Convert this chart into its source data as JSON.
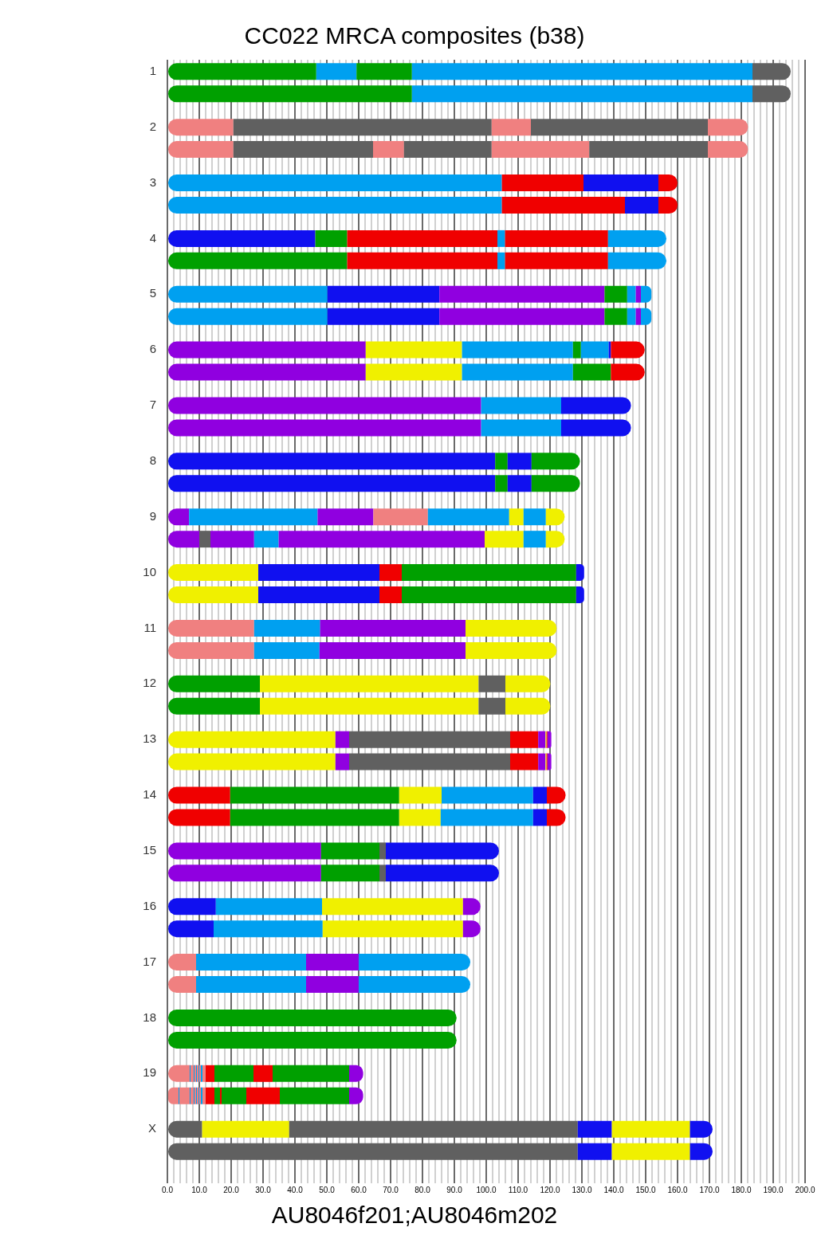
{
  "chart_data": {
    "type": "bar",
    "orientation": "horizontal",
    "stacked": true,
    "title": "CC022 MRCA composites (b38)",
    "xlabel": "AU8046f201;AU8046m202",
    "categories": [
      "1",
      null,
      "2",
      null,
      "3",
      null,
      "4",
      null,
      "5",
      null,
      "6",
      null,
      "7",
      null,
      "8",
      null,
      "9",
      null,
      "10",
      null,
      "11",
      null,
      "12",
      null,
      "13",
      null,
      "14",
      null,
      "15",
      null,
      "16",
      null,
      "17",
      null,
      "18",
      null,
      "19",
      null,
      "X",
      null
    ],
    "xlim": [
      0,
      200
    ],
    "xticks": [
      {
        "value": 0,
        "label": "0.0"
      },
      {
        "value": 2,
        "label": null
      },
      {
        "value": 4,
        "label": null
      },
      {
        "value": 6,
        "label": null
      },
      {
        "value": 8,
        "label": null
      },
      {
        "value": 10,
        "label": "10.0"
      },
      {
        "value": 12,
        "label": null
      },
      {
        "value": 14,
        "label": null
      },
      {
        "value": 16,
        "label": null
      },
      {
        "value": 18,
        "label": null
      },
      {
        "value": 20,
        "label": "20.0"
      },
      {
        "value": 22,
        "label": null
      },
      {
        "value": 24,
        "label": null
      },
      {
        "value": 26,
        "label": null
      },
      {
        "value": 28,
        "label": null
      },
      {
        "value": 30,
        "label": "30.0"
      },
      {
        "value": 32,
        "label": null
      },
      {
        "value": 34,
        "label": null
      },
      {
        "value": 36,
        "label": null
      },
      {
        "value": 38,
        "label": null
      },
      {
        "value": 40,
        "label": "40.0"
      },
      {
        "value": 42,
        "label": null
      },
      {
        "value": 44,
        "label": null
      },
      {
        "value": 46,
        "label": null
      },
      {
        "value": 48,
        "label": null
      },
      {
        "value": 50,
        "label": "50.0"
      },
      {
        "value": 52,
        "label": null
      },
      {
        "value": 54,
        "label": null
      },
      {
        "value": 56,
        "label": null
      },
      {
        "value": 58,
        "label": null
      },
      {
        "value": 60,
        "label": "60.0"
      },
      {
        "value": 62,
        "label": null
      },
      {
        "value": 64,
        "label": null
      },
      {
        "value": 66,
        "label": null
      },
      {
        "value": 68,
        "label": null
      },
      {
        "value": 70,
        "label": "70.0"
      },
      {
        "value": 72,
        "label": null
      },
      {
        "value": 74,
        "label": null
      },
      {
        "value": 76,
        "label": null
      },
      {
        "value": 78,
        "label": null
      },
      {
        "value": 80,
        "label": "80.0"
      },
      {
        "value": 82,
        "label": null
      },
      {
        "value": 84,
        "label": null
      },
      {
        "value": 86,
        "label": null
      },
      {
        "value": 88,
        "label": null
      },
      {
        "value": 90,
        "label": "90.0"
      },
      {
        "value": 92,
        "label": null
      },
      {
        "value": 94,
        "label": null
      },
      {
        "value": 96,
        "label": null
      },
      {
        "value": 98,
        "label": null
      },
      {
        "value": 100,
        "label": "100.0"
      },
      {
        "value": 102,
        "label": null
      },
      {
        "value": 104,
        "label": null
      },
      {
        "value": 106,
        "label": null
      },
      {
        "value": 108,
        "label": null
      },
      {
        "value": 110,
        "label": "110.0"
      },
      {
        "value": 112,
        "label": null
      },
      {
        "value": 114,
        "label": null
      },
      {
        "value": 116,
        "label": null
      },
      {
        "value": 118,
        "label": null
      },
      {
        "value": 120,
        "label": "120.0"
      },
      {
        "value": 122,
        "label": null
      },
      {
        "value": 124,
        "label": null
      },
      {
        "value": 126,
        "label": null
      },
      {
        "value": 128,
        "label": null
      },
      {
        "value": 130,
        "label": "130.0"
      },
      {
        "value": 132,
        "label": null
      },
      {
        "value": 134,
        "label": null
      },
      {
        "value": 136,
        "label": null
      },
      {
        "value": 138,
        "label": null
      },
      {
        "value": 140,
        "label": "140.0"
      },
      {
        "value": 142,
        "label": null
      },
      {
        "value": 144,
        "label": null
      },
      {
        "value": 146,
        "label": null
      },
      {
        "value": 148,
        "label": null
      },
      {
        "value": 150,
        "label": "150.0"
      },
      {
        "value": 152,
        "label": null
      },
      {
        "value": 154,
        "label": null
      },
      {
        "value": 156,
        "label": null
      },
      {
        "value": 158,
        "label": null
      },
      {
        "value": 160,
        "label": "160.0"
      },
      {
        "value": 162,
        "label": null
      },
      {
        "value": 164,
        "label": null
      },
      {
        "value": 166,
        "label": null
      },
      {
        "value": 168,
        "label": null
      },
      {
        "value": 170,
        "label": "170.0"
      },
      {
        "value": 172,
        "label": null
      },
      {
        "value": 174,
        "label": null
      },
      {
        "value": 176,
        "label": null
      },
      {
        "value": 178,
        "label": null
      },
      {
        "value": 180,
        "label": "180.0"
      },
      {
        "value": 182,
        "label": null
      },
      {
        "value": 184,
        "label": null
      },
      {
        "value": 186,
        "label": null
      },
      {
        "value": 188,
        "label": null
      },
      {
        "value": 190,
        "label": "190.0"
      },
      {
        "value": 192,
        "label": null
      },
      {
        "value": 194,
        "label": null
      },
      {
        "value": 196,
        "label": null
      },
      {
        "value": 198,
        "label": null
      },
      {
        "value": 200,
        "label": "200.0"
      }
    ],
    "grid": "x",
    "series": [
      {
        "values": [
          46.7,
          76.7,
          20.7,
          20.7,
          104.9,
          104.9,
          46.4,
          56.4,
          50.2,
          50.2,
          62.2,
          62.2,
          98.4,
          98.4,
          102.8,
          102.8,
          6.8,
          10.0,
          28.5,
          28.5,
          27.2,
          27.2,
          29.0,
          29.0,
          52.7,
          52.7,
          19.7,
          19.7,
          48.2,
          48.2,
          15.2,
          14.5,
          9.0,
          9.0,
          90.7,
          90.7,
          7.0,
          3.5,
          10.9,
          128.7
        ],
        "colors": [
          "#00a000",
          "#00a000",
          "#f08080",
          "#f08080",
          "#00a0f0",
          "#00a0f0",
          "#1010f0",
          "#00a000",
          "#00a0f0",
          "#00a0f0",
          "#9000e0",
          "#9000e0",
          "#9000e0",
          "#9000e0",
          "#1010f0",
          "#1010f0",
          "#9000e0",
          "#9000e0",
          "#f0f000",
          "#f0f000",
          "#f08080",
          "#f08080",
          "#00a000",
          "#00a000",
          "#f0f000",
          "#f0f000",
          "#f00000",
          "#f00000",
          "#9000e0",
          "#9000e0",
          "#1010f0",
          "#1010f0",
          "#f08080",
          "#f08080",
          "#00a000",
          "#00a000",
          "#f08080",
          "#f08080",
          "#606060",
          "#606060"
        ]
      },
      {
        "values": [
          12.6,
          106.8,
          81.0,
          43.8,
          25.6,
          38.6,
          10.0,
          47.1,
          35.1,
          35.1,
          30.2,
          30.2,
          25.1,
          25.1,
          3.9,
          3.9,
          40.3,
          3.5,
          38.0,
          38.0,
          20.7,
          20.5,
          68.6,
          68.6,
          4.3,
          4.3,
          53.0,
          53.0,
          18.3,
          18.3,
          33.3,
          34.2,
          34.5,
          34.5,
          null,
          null,
          0.25,
          0.25,
          27.3,
          10.7
        ],
        "colors": [
          "#00a0f0",
          "#00a0f0",
          "#606060",
          "#606060",
          "#f00000",
          "#f00000",
          "#00a000",
          "#f00000",
          "#1010f0",
          "#1010f0",
          "#f0f000",
          "#f0f000",
          "#00a0f0",
          "#00a0f0",
          "#00a000",
          "#00a000",
          "#00a0f0",
          "#606060",
          "#1010f0",
          "#1010f0",
          "#00a0f0",
          "#00a0f0",
          "#f0f000",
          "#f0f000",
          "#9000e0",
          "#9000e0",
          "#00a000",
          "#00a000",
          "#00a000",
          "#00a000",
          "#00a0f0",
          "#00a0f0",
          "#00a0f0",
          "#00a0f0",
          null,
          null,
          "#00a0f0",
          "#00a0f0",
          "#f0f000",
          "#1010f0"
        ]
      },
      {
        "values": [
          17.4,
          12.0,
          12.3,
          9.7,
          23.5,
          10.5,
          47.1,
          2.4,
          51.8,
          51.8,
          34.8,
          34.8,
          21.9,
          21.9,
          7.5,
          7.5,
          17.5,
          13.7,
          7.0,
          7.0,
          45.6,
          45.8,
          8.4,
          8.4,
          50.5,
          50.5,
          13.3,
          13.0,
          2.0,
          2.0,
          44.2,
          44.0,
          16.5,
          16.5,
          null,
          null,
          1.0,
          3.25,
          90.5,
          24.5
        ],
        "colors": [
          "#00a000",
          "#606060",
          "#f08080",
          "#f08080",
          "#1010f0",
          "#1010f0",
          "#f00000",
          "#00a0f0",
          "#9000e0",
          "#9000e0",
          "#00a0f0",
          "#00a0f0",
          "#1010f0",
          "#1010f0",
          "#1010f0",
          "#1010f0",
          "#9000e0",
          "#9000e0",
          "#f00000",
          "#f00000",
          "#9000e0",
          "#9000e0",
          "#606060",
          "#606060",
          "#606060",
          "#606060",
          "#f0f000",
          "#f0f000",
          "#606060",
          "#606060",
          "#f0f000",
          "#f0f000",
          "#9000e0",
          "#9000e0",
          null,
          null,
          "#f08080",
          "#f08080",
          "#606060",
          "#f0f000"
        ]
      },
      {
        "values": [
          106.8,
          null,
          55.5,
          27.5,
          6.0,
          6.0,
          2.4,
          32.3,
          7.1,
          7.1,
          2.5,
          11.9,
          null,
          null,
          15.2,
          15.2,
          17.1,
          7.7,
          54.7,
          54.7,
          28.6,
          28.6,
          14.1,
          14.1,
          8.8,
          8.8,
          28.7,
          29.0,
          35.5,
          35.5,
          5.5,
          5.5,
          35.0,
          35.0,
          null,
          null,
          0.25,
          0.25,
          10.7,
          7.1
        ],
        "colors": [
          "#00a0f0",
          null,
          "#606060",
          "#606060",
          "#f00000",
          "#f00000",
          "#00a0f0",
          "#f00000",
          "#00a000",
          "#00a000",
          "#00a000",
          "#00a000",
          null,
          null,
          "#00a000",
          "#00a000",
          "#f08080",
          "#00a0f0",
          "#00a000",
          "#00a000",
          "#f0f000",
          "#f0f000",
          "#f0f000",
          "#f0f000",
          "#f00000",
          "#f00000",
          "#00a0f0",
          "#00a0f0",
          "#1010f0",
          "#1010f0",
          "#9000e0",
          "#9000e0",
          "#00a0f0",
          "#00a0f0",
          null,
          null,
          "#00a0f0",
          "#00a0f0",
          "#1010f0",
          "#1010f0"
        ]
      },
      {
        "values": [
          12.0,
          null,
          12.6,
          30.6,
          null,
          null,
          32.3,
          18.3,
          2.7,
          2.7,
          8.7,
          10.6,
          null,
          null,
          null,
          null,
          25.5,
          64.6,
          2.5,
          2.5,
          null,
          null,
          null,
          null,
          2.3,
          2.3,
          4.3,
          4.3,
          null,
          null,
          null,
          null,
          null,
          null,
          null,
          null,
          0.5,
          1.0,
          24.5,
          null
        ],
        "colors": [
          "#606060",
          null,
          "#f08080",
          "#f08080",
          null,
          null,
          "#f00000",
          "#00a0f0",
          "#00a0f0",
          "#00a0f0",
          "#00a0f0",
          "#f00000",
          null,
          null,
          null,
          null,
          "#00a0f0",
          "#9000e0",
          "#1010f0",
          "#1010f0",
          null,
          null,
          null,
          null,
          "#9000e0",
          "#9000e0",
          "#1010f0",
          "#1010f0",
          null,
          null,
          null,
          null,
          null,
          null,
          null,
          null,
          "#f08080",
          "#f08080",
          "#f0f000",
          null
        ]
      },
      {
        "values": [
          null,
          null,
          null,
          37.2,
          null,
          null,
          18.3,
          null,
          1.6,
          1.6,
          0.7,
          null,
          null,
          null,
          null,
          null,
          4.5,
          12.2,
          null,
          null,
          null,
          null,
          null,
          null,
          0.3,
          0.3,
          5.9,
          5.9,
          null,
          null,
          null,
          null,
          null,
          null,
          null,
          null,
          0.25,
          0.25,
          7.1,
          null
        ],
        "colors": [
          null,
          null,
          null,
          "#606060",
          null,
          null,
          "#00a0f0",
          null,
          "#9000e0",
          "#9000e0",
          "#1010f0",
          null,
          null,
          null,
          null,
          null,
          "#f0f000",
          "#f0f000",
          null,
          null,
          null,
          null,
          null,
          null,
          "#f0f000",
          "#f0f000",
          "#f00000",
          "#f00000",
          null,
          null,
          null,
          null,
          null,
          null,
          null,
          null,
          "#00a0f0",
          "#00a0f0",
          "#1010f0",
          null
        ]
      },
      {
        "values": [
          null,
          null,
          null,
          12.6,
          null,
          null,
          null,
          null,
          3.3,
          3.3,
          10.6,
          null,
          null,
          null,
          null,
          null,
          7.0,
          7.0,
          null,
          null,
          null,
          null,
          null,
          null,
          0.3,
          0.3,
          null,
          null,
          null,
          null,
          null,
          null,
          null,
          null,
          null,
          null,
          0.5,
          0.5,
          null,
          null
        ],
        "colors": [
          null,
          null,
          null,
          "#f08080",
          null,
          null,
          null,
          null,
          "#00a0f0",
          "#00a0f0",
          "#f00000",
          null,
          null,
          null,
          null,
          null,
          "#00a0f0",
          "#00a0f0",
          null,
          null,
          null,
          null,
          null,
          null,
          "#f00000",
          "#f00000",
          null,
          null,
          null,
          null,
          null,
          null,
          null,
          null,
          null,
          null,
          "#f08080",
          "#f08080",
          null,
          null
        ]
      },
      {
        "values": [
          null,
          null,
          null,
          null,
          null,
          null,
          null,
          null,
          null,
          null,
          null,
          null,
          null,
          null,
          null,
          null,
          5.9,
          5.9,
          null,
          null,
          null,
          null,
          null,
          null,
          1.2,
          1.2,
          null,
          null,
          null,
          null,
          null,
          null,
          null,
          null,
          null,
          null,
          0.25,
          0.25,
          null,
          null
        ],
        "colors": [
          null,
          null,
          null,
          null,
          null,
          null,
          null,
          null,
          null,
          null,
          null,
          null,
          null,
          null,
          null,
          null,
          "#f0f000",
          "#f0f000",
          null,
          null,
          null,
          null,
          null,
          null,
          "#9000e0",
          "#9000e0",
          null,
          null,
          null,
          null,
          null,
          null,
          null,
          null,
          null,
          null,
          "#00a0f0",
          "#00a0f0",
          null,
          null
        ]
      },
      {
        "values": [
          null,
          null,
          null,
          null,
          null,
          null,
          null,
          null,
          null,
          null,
          null,
          null,
          null,
          null,
          null,
          null,
          null,
          null,
          null,
          null,
          null,
          null,
          null,
          null,
          null,
          null,
          null,
          null,
          null,
          null,
          null,
          null,
          null,
          null,
          null,
          null,
          0.5,
          0.5,
          null,
          null
        ],
        "colors": [
          null,
          null,
          null,
          null,
          null,
          null,
          null,
          null,
          null,
          null,
          null,
          null,
          null,
          null,
          null,
          null,
          null,
          null,
          null,
          null,
          null,
          null,
          null,
          null,
          null,
          null,
          null,
          null,
          null,
          null,
          null,
          null,
          null,
          null,
          null,
          null,
          "#f08080",
          "#f08080",
          null,
          null
        ]
      },
      {
        "values": [
          null,
          null,
          null,
          null,
          null,
          null,
          null,
          null,
          null,
          null,
          null,
          null,
          null,
          null,
          null,
          null,
          null,
          null,
          null,
          null,
          null,
          null,
          null,
          null,
          null,
          null,
          null,
          null,
          null,
          null,
          null,
          null,
          null,
          null,
          null,
          null,
          0.5,
          0.25,
          null,
          null
        ],
        "colors": [
          null,
          null,
          null,
          null,
          null,
          null,
          null,
          null,
          null,
          null,
          null,
          null,
          null,
          null,
          null,
          null,
          null,
          null,
          null,
          null,
          null,
          null,
          null,
          null,
          null,
          null,
          null,
          null,
          null,
          null,
          null,
          null,
          null,
          null,
          null,
          null,
          "#00a0f0",
          "#00a0f0",
          null,
          null
        ]
      },
      {
        "values": [
          null,
          null,
          null,
          null,
          null,
          null,
          null,
          null,
          null,
          null,
          null,
          null,
          null,
          null,
          null,
          null,
          null,
          null,
          null,
          null,
          null,
          null,
          null,
          null,
          null,
          null,
          null,
          null,
          null,
          null,
          null,
          null,
          null,
          null,
          null,
          null,
          1.0,
          0.5,
          null,
          null
        ],
        "colors": [
          null,
          null,
          null,
          null,
          null,
          null,
          null,
          null,
          null,
          null,
          null,
          null,
          null,
          null,
          null,
          null,
          null,
          null,
          null,
          null,
          null,
          null,
          null,
          null,
          null,
          null,
          null,
          null,
          null,
          null,
          null,
          null,
          null,
          null,
          null,
          null,
          "#f08080",
          "#f08080",
          null,
          null
        ]
      },
      {
        "values": [
          null,
          null,
          null,
          null,
          null,
          null,
          null,
          null,
          null,
          null,
          null,
          null,
          null,
          null,
          null,
          null,
          null,
          null,
          null,
          null,
          null,
          null,
          null,
          null,
          null,
          null,
          null,
          null,
          null,
          null,
          null,
          null,
          null,
          null,
          null,
          null,
          2.75,
          0.5,
          null,
          null
        ],
        "colors": [
          null,
          null,
          null,
          null,
          null,
          null,
          null,
          null,
          null,
          null,
          null,
          null,
          null,
          null,
          null,
          null,
          null,
          null,
          null,
          null,
          null,
          null,
          null,
          null,
          null,
          null,
          null,
          null,
          null,
          null,
          null,
          null,
          null,
          null,
          null,
          null,
          "#f00000",
          "#00a0f0",
          null,
          null
        ]
      },
      {
        "values": [
          null,
          null,
          null,
          null,
          null,
          null,
          null,
          null,
          null,
          null,
          null,
          null,
          null,
          null,
          null,
          null,
          null,
          null,
          null,
          null,
          null,
          null,
          null,
          null,
          null,
          null,
          null,
          null,
          null,
          null,
          null,
          null,
          null,
          null,
          null,
          null,
          12.25,
          1.0,
          null,
          null
        ],
        "colors": [
          null,
          null,
          null,
          null,
          null,
          null,
          null,
          null,
          null,
          null,
          null,
          null,
          null,
          null,
          null,
          null,
          null,
          null,
          null,
          null,
          null,
          null,
          null,
          null,
          null,
          null,
          null,
          null,
          null,
          null,
          null,
          null,
          null,
          null,
          null,
          null,
          "#00a000",
          "#f08080",
          null,
          null
        ]
      },
      {
        "values": [
          null,
          null,
          null,
          null,
          null,
          null,
          null,
          null,
          null,
          null,
          null,
          null,
          null,
          null,
          null,
          null,
          null,
          null,
          null,
          null,
          null,
          null,
          null,
          null,
          null,
          null,
          null,
          null,
          null,
          null,
          null,
          null,
          null,
          null,
          null,
          null,
          6.0,
          2.75,
          null,
          null
        ],
        "colors": [
          null,
          null,
          null,
          null,
          null,
          null,
          null,
          null,
          null,
          null,
          null,
          null,
          null,
          null,
          null,
          null,
          null,
          null,
          null,
          null,
          null,
          null,
          null,
          null,
          null,
          null,
          null,
          null,
          null,
          null,
          null,
          null,
          null,
          null,
          null,
          null,
          "#f00000",
          "#f00000",
          null,
          null
        ]
      },
      {
        "values": [
          null,
          null,
          null,
          null,
          null,
          null,
          null,
          null,
          null,
          null,
          null,
          null,
          null,
          null,
          null,
          null,
          null,
          null,
          null,
          null,
          null,
          null,
          null,
          null,
          null,
          null,
          null,
          null,
          null,
          null,
          null,
          null,
          null,
          null,
          null,
          null,
          24.0,
          1.75,
          null,
          null
        ],
        "colors": [
          null,
          null,
          null,
          null,
          null,
          null,
          null,
          null,
          null,
          null,
          null,
          null,
          null,
          null,
          null,
          null,
          null,
          null,
          null,
          null,
          null,
          null,
          null,
          null,
          null,
          null,
          null,
          null,
          null,
          null,
          null,
          null,
          null,
          null,
          null,
          null,
          "#00a000",
          "#00a000",
          null,
          null
        ]
      },
      {
        "values": [
          null,
          null,
          null,
          null,
          null,
          null,
          null,
          null,
          null,
          null,
          null,
          null,
          null,
          null,
          null,
          null,
          null,
          null,
          null,
          null,
          null,
          null,
          null,
          null,
          null,
          null,
          null,
          null,
          null,
          null,
          null,
          null,
          null,
          null,
          null,
          null,
          4.4,
          0.5,
          null,
          null
        ],
        "colors": [
          null,
          null,
          null,
          null,
          null,
          null,
          null,
          null,
          null,
          null,
          null,
          null,
          null,
          null,
          null,
          null,
          null,
          null,
          null,
          null,
          null,
          null,
          null,
          null,
          null,
          null,
          null,
          null,
          null,
          null,
          null,
          null,
          null,
          null,
          null,
          null,
          "#9000e0",
          "#f00000",
          null,
          null
        ]
      },
      {
        "values": [
          null,
          null,
          null,
          null,
          null,
          null,
          null,
          null,
          null,
          null,
          null,
          null,
          null,
          null,
          null,
          null,
          null,
          null,
          null,
          null,
          null,
          null,
          null,
          null,
          null,
          null,
          null,
          null,
          null,
          null,
          null,
          null,
          null,
          null,
          null,
          null,
          null,
          7.75,
          null,
          null
        ],
        "colors": [
          null,
          null,
          null,
          null,
          null,
          null,
          null,
          null,
          null,
          null,
          null,
          null,
          null,
          null,
          null,
          null,
          null,
          null,
          null,
          null,
          null,
          null,
          null,
          null,
          null,
          null,
          null,
          null,
          null,
          null,
          null,
          null,
          null,
          null,
          null,
          null,
          null,
          "#00a000",
          null,
          null
        ]
      },
      {
        "values": [
          null,
          null,
          null,
          null,
          null,
          null,
          null,
          null,
          null,
          null,
          null,
          null,
          null,
          null,
          null,
          null,
          null,
          null,
          null,
          null,
          null,
          null,
          null,
          null,
          null,
          null,
          null,
          null,
          null,
          null,
          null,
          null,
          null,
          null,
          null,
          null,
          null,
          10.5,
          null,
          null
        ],
        "colors": [
          null,
          null,
          null,
          null,
          null,
          null,
          null,
          null,
          null,
          null,
          null,
          null,
          null,
          null,
          null,
          null,
          null,
          null,
          null,
          null,
          null,
          null,
          null,
          null,
          null,
          null,
          null,
          null,
          null,
          null,
          null,
          null,
          null,
          null,
          null,
          null,
          null,
          "#f00000",
          null,
          null
        ]
      },
      {
        "values": [
          null,
          null,
          null,
          null,
          null,
          null,
          null,
          null,
          null,
          null,
          null,
          null,
          null,
          null,
          null,
          null,
          null,
          null,
          null,
          null,
          null,
          null,
          null,
          null,
          null,
          null,
          null,
          null,
          null,
          null,
          null,
          null,
          null,
          null,
          null,
          null,
          null,
          21.75,
          null,
          null
        ],
        "colors": [
          null,
          null,
          null,
          null,
          null,
          null,
          null,
          null,
          null,
          null,
          null,
          null,
          null,
          null,
          null,
          null,
          null,
          null,
          null,
          null,
          null,
          null,
          null,
          null,
          null,
          null,
          null,
          null,
          null,
          null,
          null,
          null,
          null,
          null,
          null,
          null,
          null,
          "#00a000",
          null,
          null
        ]
      },
      {
        "values": [
          null,
          null,
          null,
          null,
          null,
          null,
          null,
          null,
          null,
          null,
          null,
          null,
          null,
          null,
          null,
          null,
          null,
          null,
          null,
          null,
          null,
          null,
          null,
          null,
          null,
          null,
          null,
          null,
          null,
          null,
          null,
          null,
          null,
          null,
          null,
          null,
          null,
          4.4,
          null,
          null
        ],
        "colors": [
          null,
          null,
          null,
          null,
          null,
          null,
          null,
          null,
          null,
          null,
          null,
          null,
          null,
          null,
          null,
          null,
          null,
          null,
          null,
          null,
          null,
          null,
          null,
          null,
          null,
          null,
          null,
          null,
          null,
          null,
          null,
          null,
          null,
          null,
          null,
          null,
          null,
          "#9000e0",
          null,
          null
        ]
      }
    ]
  }
}
